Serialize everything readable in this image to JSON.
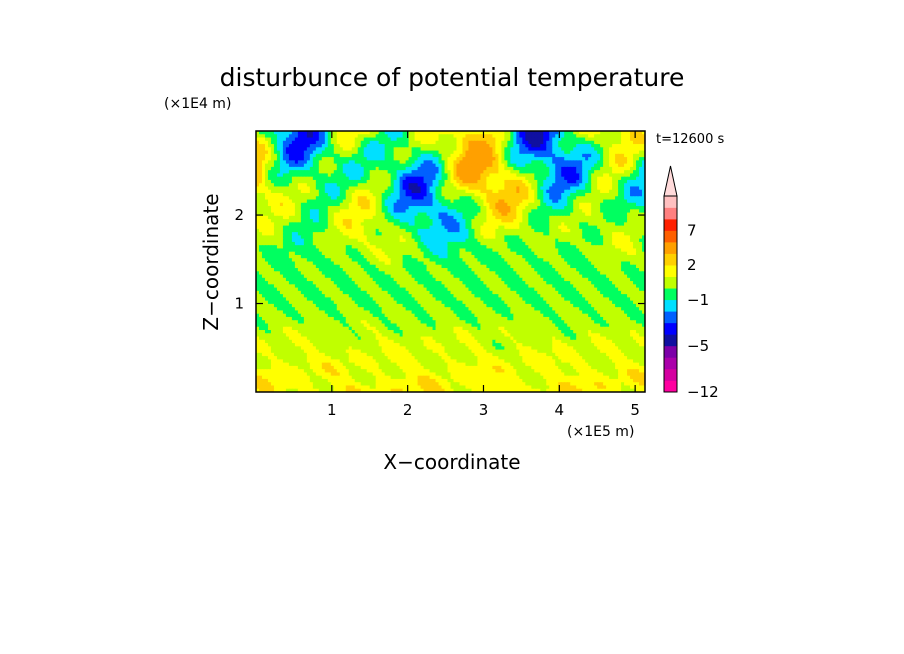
{
  "chart_data": {
    "type": "heatmap",
    "title": "disturbunce of potential temperature",
    "xlabel": "X−coordinate",
    "ylabel": "Z−coordinate",
    "x_scale_label": "(×1E5 m)",
    "y_scale_label": "(×1E4 m)",
    "time_label": "t=12600 s",
    "xlim": [
      0,
      5.13
    ],
    "ylim": [
      0,
      2.95
    ],
    "x_ticks": [
      {
        "value": 1,
        "label": "1"
      },
      {
        "value": 2,
        "label": "2"
      },
      {
        "value": 3,
        "label": "3"
      },
      {
        "value": 4,
        "label": "4"
      },
      {
        "value": 5,
        "label": "5"
      }
    ],
    "y_ticks": [
      {
        "value": 1,
        "label": "1"
      },
      {
        "value": 2,
        "label": "2"
      }
    ],
    "colorbar": {
      "levels": [
        -12,
        -10,
        -8,
        -6,
        -5,
        -4,
        -3,
        -2,
        -1,
        0,
        1,
        2,
        3,
        5,
        7,
        9,
        11
      ],
      "colors": [
        "#ff00a0",
        "#d400a0",
        "#aa00aa",
        "#7c00a8",
        "#1010a0",
        "#0000ff",
        "#0060ff",
        "#00e0ff",
        "#00ff60",
        "#c0ff00",
        "#ffff00",
        "#ffd000",
        "#ffa000",
        "#ff6000",
        "#ff2000",
        "#ff8080",
        "#ffc0c0"
      ],
      "extend_color": "#ffdada",
      "tick_labels": [
        {
          "value": 7,
          "label": "7"
        },
        {
          "value": 2,
          "label": "2"
        },
        {
          "value": -1,
          "label": "−1"
        },
        {
          "value": -5,
          "label": "−5"
        },
        {
          "value": -12,
          "label": "−12"
        }
      ]
    },
    "grid": false
  }
}
